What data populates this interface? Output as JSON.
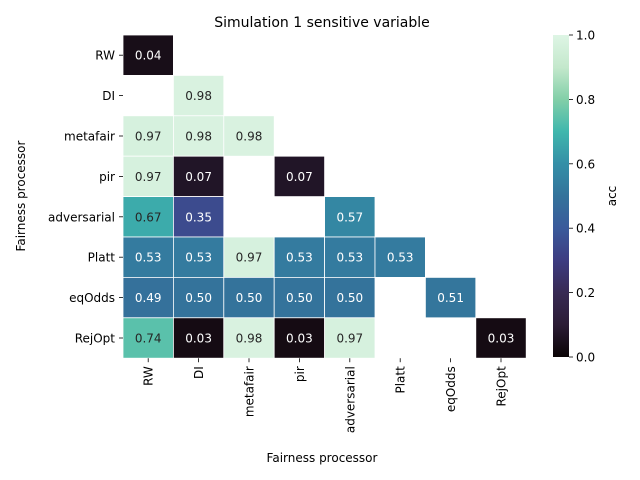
{
  "chart_data": {
    "type": "heatmap",
    "title": "Simulation 1 sensitive variable",
    "xlabel": "Fairness processor",
    "ylabel": "Fairness processor",
    "x_categories": [
      "RW",
      "DI",
      "metafair",
      "pir",
      "adversarial",
      "Platt",
      "eqOdds",
      "RejOpt"
    ],
    "y_categories": [
      "RW",
      "DI",
      "metafair",
      "pir",
      "adversarial",
      "Platt",
      "eqOdds",
      "RejOpt"
    ],
    "values": [
      [
        0.04,
        null,
        null,
        null,
        null,
        null,
        null,
        null
      ],
      [
        null,
        0.98,
        null,
        null,
        null,
        null,
        null,
        null
      ],
      [
        0.97,
        0.98,
        0.98,
        null,
        null,
        null,
        null,
        null
      ],
      [
        0.97,
        0.07,
        null,
        0.07,
        null,
        null,
        null,
        null
      ],
      [
        0.67,
        0.35,
        null,
        null,
        0.57,
        null,
        null,
        null
      ],
      [
        0.53,
        0.53,
        0.97,
        0.53,
        0.53,
        0.53,
        null,
        null
      ],
      [
        0.49,
        0.5,
        0.5,
        0.5,
        0.5,
        null,
        0.51,
        null
      ],
      [
        0.74,
        0.03,
        0.98,
        0.03,
        0.97,
        null,
        null,
        0.03
      ]
    ],
    "colorbar": {
      "label": "acc",
      "range": [
        0.0,
        1.0
      ],
      "ticks": [
        "0.0",
        "0.2",
        "0.4",
        "0.6",
        "0.8",
        "1.0"
      ],
      "colormap": "mako"
    }
  }
}
